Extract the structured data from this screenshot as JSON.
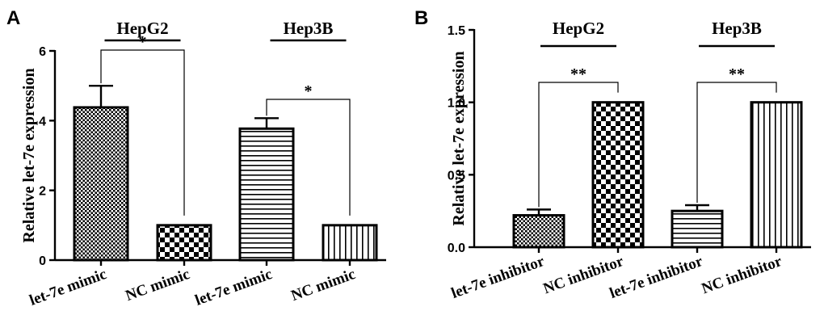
{
  "colors": {
    "ink": "#000000",
    "background": "#ffffff"
  },
  "chart_data": [
    {
      "type": "bar",
      "panel_label": "A",
      "ylabel": "Relative let-7e expression",
      "ylim": [
        0,
        6
      ],
      "yticks": [
        0,
        2,
        4,
        6
      ],
      "ytick_labels": [
        "0",
        "2",
        "4",
        "6"
      ],
      "categories": [
        "let-7e mimic",
        "NC mimic",
        "let-7e mimic",
        "NC mimic"
      ],
      "values": [
        4.38,
        1.0,
        3.77,
        1.0
      ],
      "errors": [
        0.62,
        0.0,
        0.3,
        0.0
      ],
      "patterns": [
        "checker-small",
        "checker-large",
        "horizontal-lines",
        "vertical-lines"
      ],
      "groups": [
        {
          "label": "HepG2",
          "bars": [
            0,
            1
          ]
        },
        {
          "label": "Hep3B",
          "bars": [
            2,
            3
          ]
        }
      ],
      "significance": [
        {
          "from": 0,
          "to": 1,
          "label": "*"
        },
        {
          "from": 2,
          "to": 3,
          "label": "*"
        }
      ]
    },
    {
      "type": "bar",
      "panel_label": "B",
      "ylabel": "Relative let-7e expression",
      "ylim": [
        0,
        1.5
      ],
      "yticks": [
        0,
        0.5,
        1.0,
        1.5
      ],
      "ytick_labels": [
        "0.0",
        "0.5",
        "1.0",
        "1.5"
      ],
      "categories": [
        "let-7e inhibitor",
        "NC inhibitor",
        "let-7e inhibitor",
        "NC inhibitor"
      ],
      "values": [
        0.22,
        1.0,
        0.25,
        1.0
      ],
      "errors": [
        0.04,
        0.0,
        0.04,
        0.0
      ],
      "patterns": [
        "checker-small",
        "checker-large",
        "horizontal-lines",
        "vertical-lines"
      ],
      "groups": [
        {
          "label": "HepG2",
          "bars": [
            0,
            1
          ]
        },
        {
          "label": "Hep3B",
          "bars": [
            2,
            3
          ]
        }
      ],
      "significance": [
        {
          "from": 0,
          "to": 1,
          "label": "**"
        },
        {
          "from": 2,
          "to": 3,
          "label": "**"
        }
      ]
    }
  ]
}
